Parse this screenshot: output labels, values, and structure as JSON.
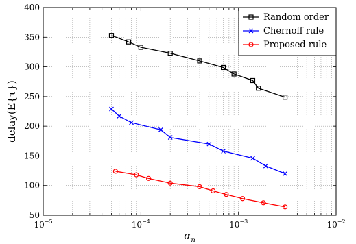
{
  "chart_data": {
    "type": "line",
    "xscale": "log",
    "xlim": [
      1e-05,
      0.01
    ],
    "ylim": [
      50,
      400
    ],
    "grid": true,
    "xlabel": "α",
    "xlabel_sub": "n",
    "ylabel": "delay(E{τ})",
    "x_ticks": [
      {
        "base": "10",
        "exp": "−5",
        "value": 1e-05
      },
      {
        "base": "10",
        "exp": "−4",
        "value": 0.0001
      },
      {
        "base": "10",
        "exp": "−3",
        "value": 0.001
      },
      {
        "base": "10",
        "exp": "−2",
        "value": 0.01
      }
    ],
    "y_ticks": [
      "50",
      "100",
      "150",
      "200",
      "250",
      "300",
      "350",
      "400"
    ],
    "legend_position": "top-right",
    "series": [
      {
        "name": "Random order",
        "color": "#000000",
        "marker": "square",
        "x": [
          5e-05,
          7.5e-05,
          0.0001,
          0.0002,
          0.0004,
          0.0007,
          0.0009,
          0.0014,
          0.0016,
          0.003
        ],
        "y": [
          353,
          342,
          333,
          323,
          310,
          299,
          288,
          277,
          264,
          249
        ]
      },
      {
        "name": "Chernoff rule",
        "color": "#0000ff",
        "marker": "cross",
        "x": [
          5e-05,
          6e-05,
          8e-05,
          0.00016,
          0.0002,
          0.0005,
          0.0007,
          0.0014,
          0.0019,
          0.003
        ],
        "y": [
          229,
          217,
          206,
          194,
          181,
          170,
          158,
          146,
          133,
          120
        ]
      },
      {
        "name": "Proposed rule",
        "color": "#ff0000",
        "marker": "circle",
        "x": [
          5.5e-05,
          9e-05,
          0.00012,
          0.0002,
          0.0004,
          0.00055,
          0.00075,
          0.0011,
          0.0018,
          0.003
        ],
        "y": [
          124,
          118,
          112,
          104,
          98,
          91,
          85,
          78,
          71,
          64
        ]
      }
    ]
  }
}
